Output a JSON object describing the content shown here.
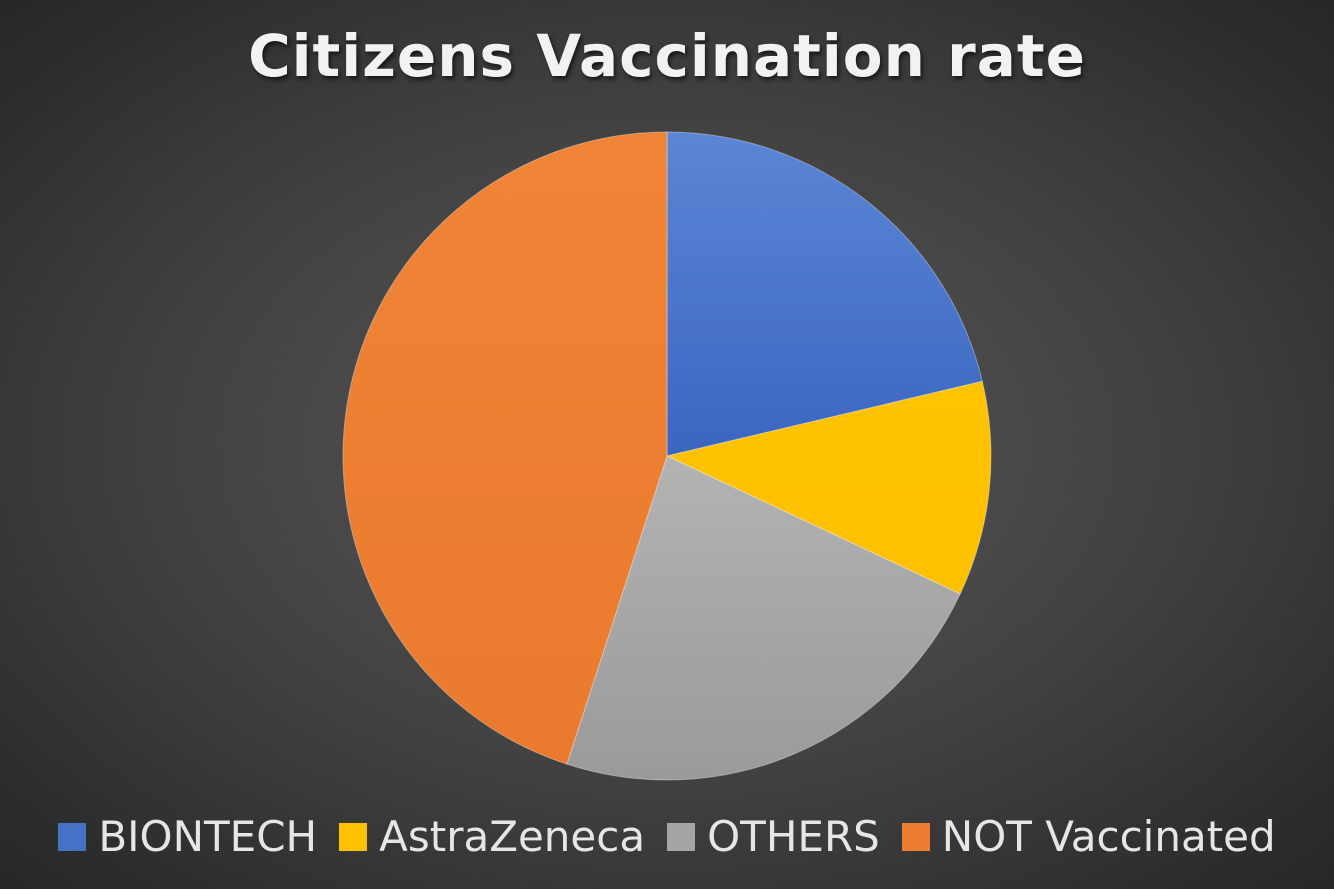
{
  "chart_data": {
    "type": "pie",
    "title": "Citizens Vaccination rate",
    "categories": [
      "BIONTECH",
      "AstraZeneca",
      "OTHERS",
      "NOT Vaccinated"
    ],
    "values": [
      21.3,
      10.7,
      23.0,
      45.0
    ],
    "unit": "% of citizens (estimated from slice angles)",
    "colors": [
      "#4472C4",
      "#FFC000",
      "#A5A5A5",
      "#ED7D31"
    ],
    "legend_position": "bottom",
    "start_angle_deg": 0,
    "direction": "clockwise"
  }
}
